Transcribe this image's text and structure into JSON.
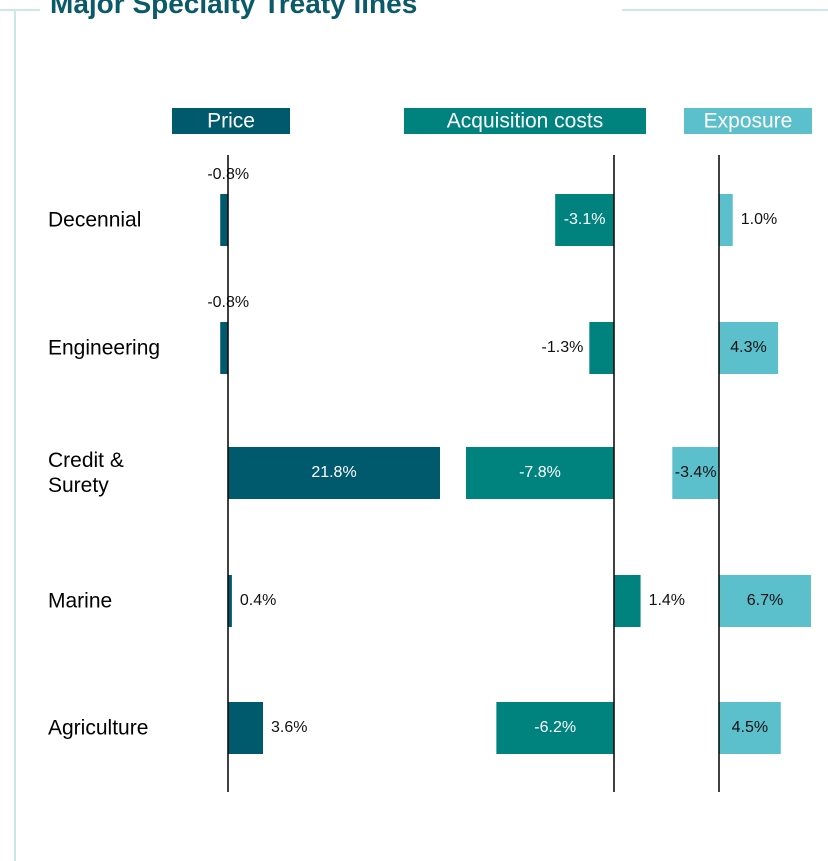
{
  "chart_data": {
    "type": "bar",
    "orientation": "horizontal",
    "title": "Major Specialty Treaty lines",
    "categories": [
      "Decennial",
      "Engineering",
      "Credit & Surety",
      "Marine",
      "Agriculture"
    ],
    "series": [
      {
        "name": "Price",
        "color": "#005a6e",
        "values": [
          -0.8,
          -0.8,
          21.8,
          0.4,
          3.6
        ],
        "value_labels": [
          "-0.8%",
          "-0.8%",
          "21.8%",
          "0.4%",
          "3.6%"
        ]
      },
      {
        "name": "Acquisition costs",
        "color": "#00827f",
        "values": [
          -3.1,
          -1.3,
          -7.8,
          1.4,
          -6.2
        ],
        "value_labels": [
          "-3.1%",
          "-1.3%",
          "-7.8%",
          "1.4%",
          "-6.2%"
        ]
      },
      {
        "name": "Exposure",
        "color": "#5bbfcc",
        "values": [
          1.0,
          4.3,
          -3.4,
          6.7,
          4.5
        ],
        "value_labels": [
          "1.0%",
          "4.3%",
          "-3.4%",
          "6.7%",
          "4.5%"
        ]
      }
    ]
  }
}
